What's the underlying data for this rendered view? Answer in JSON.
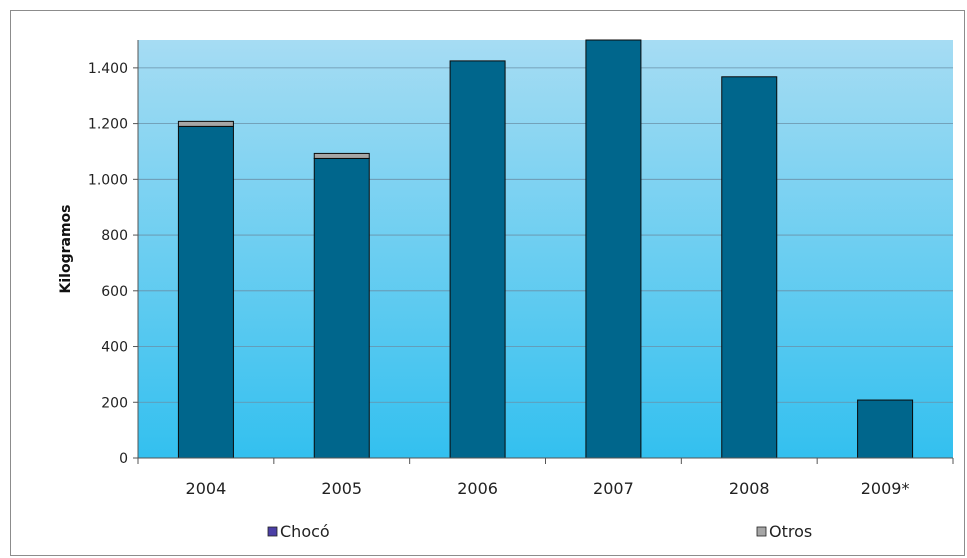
{
  "chart_data": {
    "type": "bar",
    "stacked": true,
    "categories": [
      "2004",
      "2005",
      "2006",
      "2007",
      "2008",
      "2009*"
    ],
    "series": [
      {
        "name": "Chocó",
        "values": [
          1190,
          1075,
          1425,
          1510,
          1368,
          208
        ],
        "color": "#00668c"
      },
      {
        "name": "Otros",
        "values": [
          18,
          18,
          0,
          0,
          0,
          0
        ],
        "color": "#a6a6a6"
      }
    ],
    "ylabel": "Kilogramos",
    "xlabel": "",
    "ylim": [
      0,
      1500
    ],
    "yticks": [
      0,
      200,
      400,
      600,
      800,
      1000,
      1200,
      1400
    ],
    "ytick_labels": [
      "0",
      "200",
      "400",
      "600",
      "800",
      "1.000",
      "1.200",
      "1.400"
    ],
    "grid": true,
    "legend": {
      "position": "bottom",
      "items": [
        "Chocó",
        "Otros"
      ]
    },
    "background_gradient": [
      "#a6dcf3",
      "#33c0ef"
    ]
  }
}
